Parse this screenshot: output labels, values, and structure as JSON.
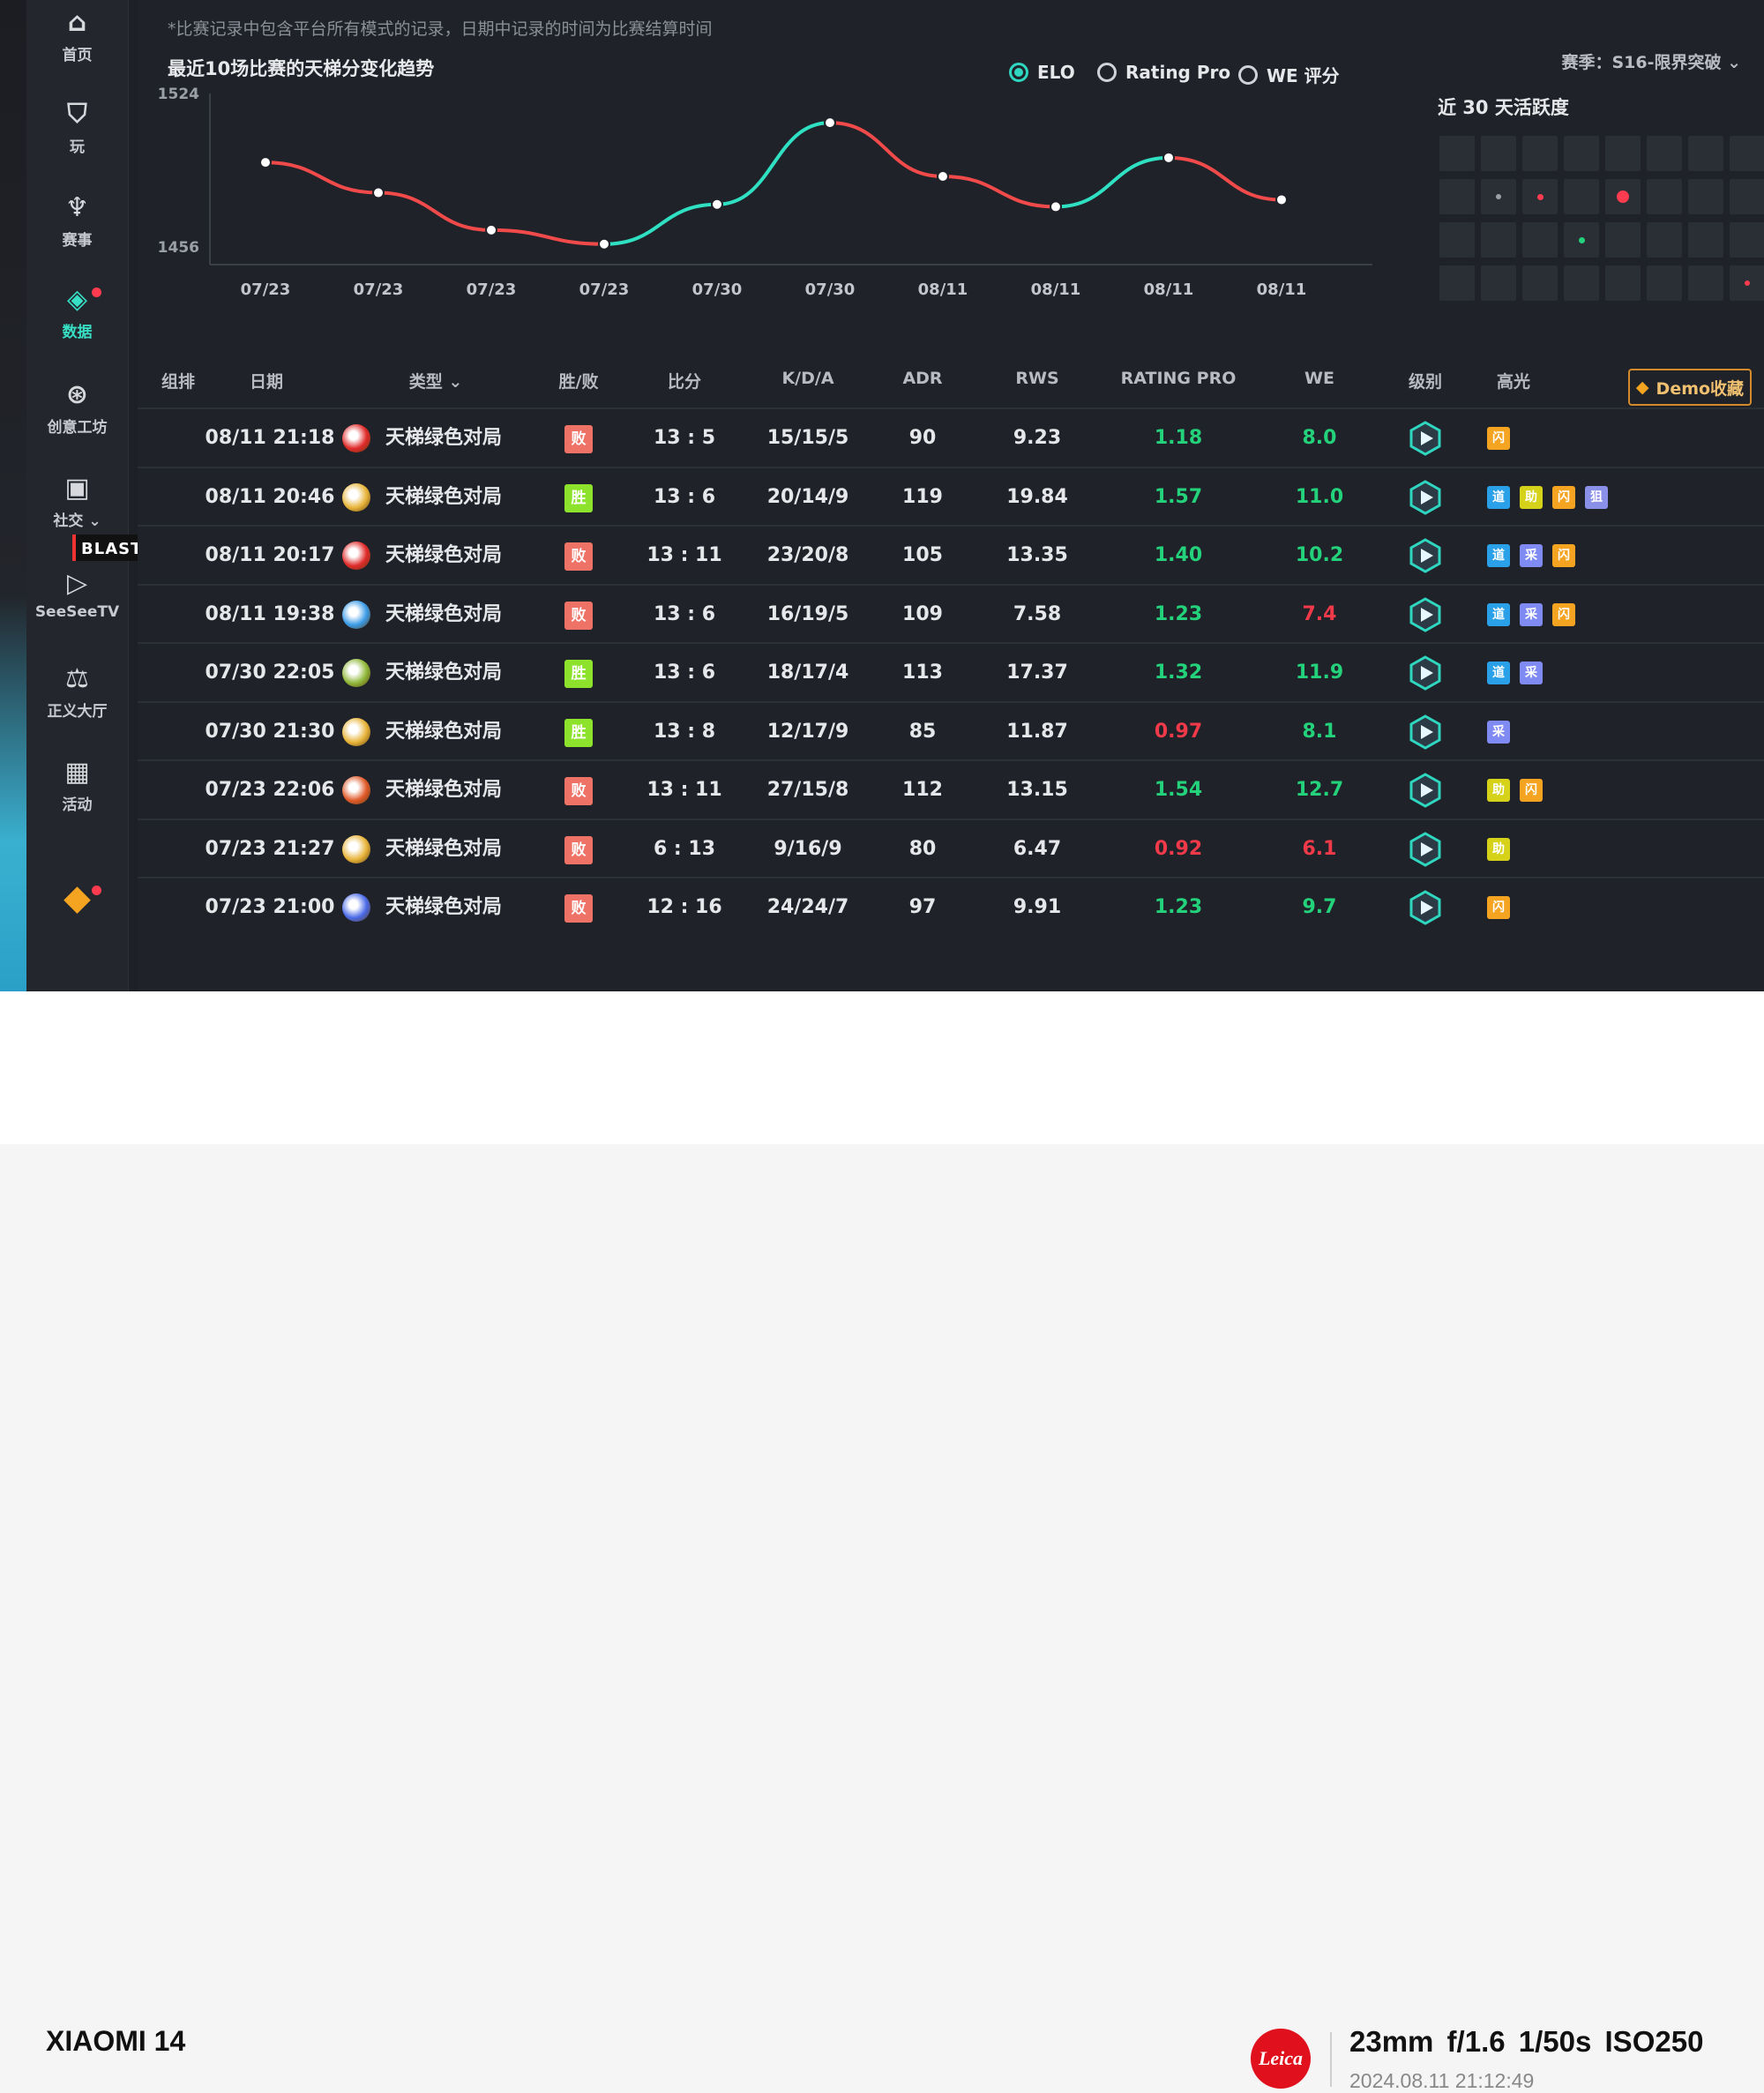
{
  "note": "*比赛记录中包含平台所有模式的记录，日期中记录的时间为比赛结算时间",
  "chart_title": "最近10场比赛的天梯分变化趋势",
  "radios": [
    {
      "label": "ELO",
      "selected": true
    },
    {
      "label": "Rating Pro",
      "selected": false
    },
    {
      "label": "WE 评分",
      "selected": false
    }
  ],
  "season": "赛季：S16-限界突破 ⌄",
  "activity_title": "近 30 天活跃度",
  "sidebar": {
    "items": [
      {
        "label": "首页",
        "icon": "home-icon",
        "glyph": "⌂"
      },
      {
        "label": "玩",
        "icon": "play-icon",
        "glyph": "⛉"
      },
      {
        "label": "赛事",
        "icon": "trophy-icon",
        "glyph": "♆"
      },
      {
        "label": "数据",
        "icon": "data-icon",
        "glyph": "◈",
        "active": true,
        "dot": true
      },
      {
        "label": "创意工坊",
        "icon": "planet-icon",
        "glyph": "⊛"
      },
      {
        "label": "社交 ⌄",
        "icon": "social-icon",
        "glyph": "▣"
      },
      {
        "label": "SeeSeeTV",
        "icon": "tv-icon",
        "glyph": "▷"
      },
      {
        "label": "正义大厅",
        "icon": "justice-icon",
        "glyph": "⚖"
      },
      {
        "label": "活动",
        "icon": "calendar-icon",
        "glyph": "▦"
      },
      {
        "label": "",
        "icon": "diamond-icon",
        "glyph": "◆",
        "dot": true
      }
    ],
    "blast_badge": "BLAST 秋季赛"
  },
  "chart_data": {
    "type": "line",
    "title": "最近10场比赛的天梯分变化趋势",
    "categories": [
      "07/23",
      "07/23",
      "07/23",
      "07/23",
      "07/30",
      "07/30",
      "08/11",
      "08/11",
      "08/11",
      "08/11"
    ],
    "values": [
      1496,
      1483,
      1467,
      1461,
      1478,
      1513,
      1490,
      1477,
      1498,
      1480
    ],
    "ylim": [
      1456,
      1524
    ],
    "y_ticks": [
      "1524",
      "1456"
    ],
    "colors": {
      "up": "#2fe0c2",
      "down": "#f04a4a"
    }
  },
  "table": {
    "headers": [
      "组排",
      "日期",
      "类型 ⌄",
      "胜/败",
      "比分",
      "K/D/A",
      "ADR",
      "RWS",
      "RATING PRO",
      "WE",
      "级别",
      "高光"
    ],
    "demo_button": "Demo收藏",
    "rows": [
      {
        "date": "08/11 21:18",
        "type": "天梯绿色对局",
        "type_color": "#e02a2a",
        "result": "败",
        "win": false,
        "score": "13 : 5",
        "kda": "15/15/5",
        "adr": "90",
        "rws": "9.23",
        "rating": "1.18",
        "rating_up": true,
        "we": "8.0",
        "we_up": true,
        "hl": [
          {
            "t": "闪",
            "c": "o"
          }
        ]
      },
      {
        "date": "08/11 20:46",
        "type": "天梯绿色对局",
        "type_color": "#e8b43a",
        "result": "胜",
        "win": true,
        "score": "13 : 6",
        "kda": "20/14/9",
        "adr": "119",
        "rws": "19.84",
        "rating": "1.57",
        "rating_up": true,
        "we": "11.0",
        "we_up": true,
        "hl": [
          {
            "t": "道",
            "c": "b"
          },
          {
            "t": "助",
            "c": "y"
          },
          {
            "t": "闪",
            "c": "o"
          },
          {
            "t": "狙",
            "c": "v"
          }
        ]
      },
      {
        "date": "08/11 20:17",
        "type": "天梯绿色对局",
        "type_color": "#e02a2a",
        "result": "败",
        "win": false,
        "score": "13 : 11",
        "kda": "23/20/8",
        "adr": "105",
        "rws": "13.35",
        "rating": "1.40",
        "rating_up": true,
        "we": "10.2",
        "we_up": true,
        "hl": [
          {
            "t": "道",
            "c": "b"
          },
          {
            "t": "采",
            "c": "p"
          },
          {
            "t": "闪",
            "c": "o"
          }
        ]
      },
      {
        "date": "08/11 19:38",
        "type": "天梯绿色对局",
        "type_color": "#3a9be8",
        "result": "败",
        "win": false,
        "score": "13 : 6",
        "kda": "16/19/5",
        "adr": "109",
        "rws": "7.58",
        "rating": "1.23",
        "rating_up": true,
        "we": "7.4",
        "we_up": false,
        "hl": [
          {
            "t": "道",
            "c": "b"
          },
          {
            "t": "采",
            "c": "p"
          },
          {
            "t": "闪",
            "c": "o"
          }
        ]
      },
      {
        "date": "07/30 22:05",
        "type": "天梯绿色对局",
        "type_color": "#8fb83a",
        "result": "胜",
        "win": true,
        "score": "13 : 6",
        "kda": "18/17/4",
        "adr": "113",
        "rws": "17.37",
        "rating": "1.32",
        "rating_up": true,
        "we": "11.9",
        "we_up": true,
        "hl": [
          {
            "t": "道",
            "c": "b"
          },
          {
            "t": "采",
            "c": "p"
          }
        ]
      },
      {
        "date": "07/30 21:30",
        "type": "天梯绿色对局",
        "type_color": "#e8b43a",
        "result": "胜",
        "win": true,
        "score": "13 : 8",
        "kda": "12/17/9",
        "adr": "85",
        "rws": "11.87",
        "rating": "0.97",
        "rating_up": false,
        "we": "8.1",
        "we_up": true,
        "hl": [
          {
            "t": "采",
            "c": "p"
          }
        ]
      },
      {
        "date": "07/23 22:06",
        "type": "天梯绿色对局",
        "type_color": "#e05a2a",
        "result": "败",
        "win": false,
        "score": "13 : 11",
        "kda": "27/15/8",
        "adr": "112",
        "rws": "13.15",
        "rating": "1.54",
        "rating_up": true,
        "we": "12.7",
        "we_up": true,
        "hl": [
          {
            "t": "助",
            "c": "y"
          },
          {
            "t": "闪",
            "c": "o"
          }
        ]
      },
      {
        "date": "07/23 21:27",
        "type": "天梯绿色对局",
        "type_color": "#e8b43a",
        "result": "败",
        "win": false,
        "score": "6 : 13",
        "kda": "9/16/9",
        "adr": "80",
        "rws": "6.47",
        "rating": "0.92",
        "rating_up": false,
        "we": "6.1",
        "we_up": false,
        "hl": [
          {
            "t": "助",
            "c": "y"
          }
        ]
      },
      {
        "date": "07/23 21:00",
        "type": "天梯绿色对局",
        "type_color": "#4a6ae8",
        "result": "败",
        "win": false,
        "score": "12 : 16",
        "kda": "24/24/7",
        "adr": "97",
        "rws": "9.91",
        "rating": "1.23",
        "rating_up": true,
        "we": "9.7",
        "we_up": true,
        "hl": [
          {
            "t": "闪",
            "c": "o"
          }
        ]
      }
    ]
  },
  "footer": {
    "phone": "XIAOMI 14",
    "leica": "Leica",
    "exif": "23mm f/1.6 1/50s ISO250",
    "datetime": "2024.08.11 21:12:49"
  }
}
